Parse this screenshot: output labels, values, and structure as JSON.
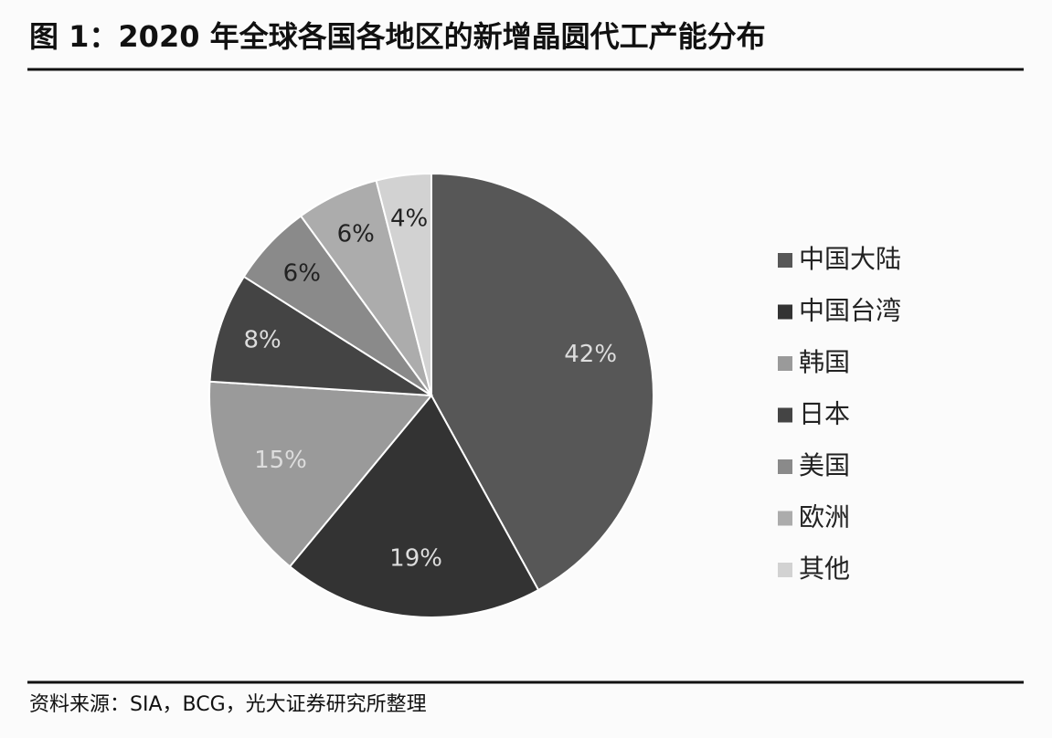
{
  "chart_data": {
    "type": "pie",
    "title": "图 1：2020 年全球各国各地区的新增晶圆代工产能分布",
    "source": "资料来源：SIA，BCG，光大证券研究所整理",
    "categories": [
      "中国大陆",
      "中国台湾",
      "韩国",
      "日本",
      "美国",
      "欧洲",
      "其他"
    ],
    "values": [
      42,
      19,
      15,
      8,
      6,
      6,
      4
    ],
    "value_labels": [
      "42%",
      "19%",
      "15%",
      "8%",
      "6%",
      "6%",
      "4%"
    ],
    "colors": [
      "#575757",
      "#333333",
      "#9a9a9a",
      "#444444",
      "#8a8a8a",
      "#acacac",
      "#d2d2d2"
    ],
    "legend": "right"
  }
}
